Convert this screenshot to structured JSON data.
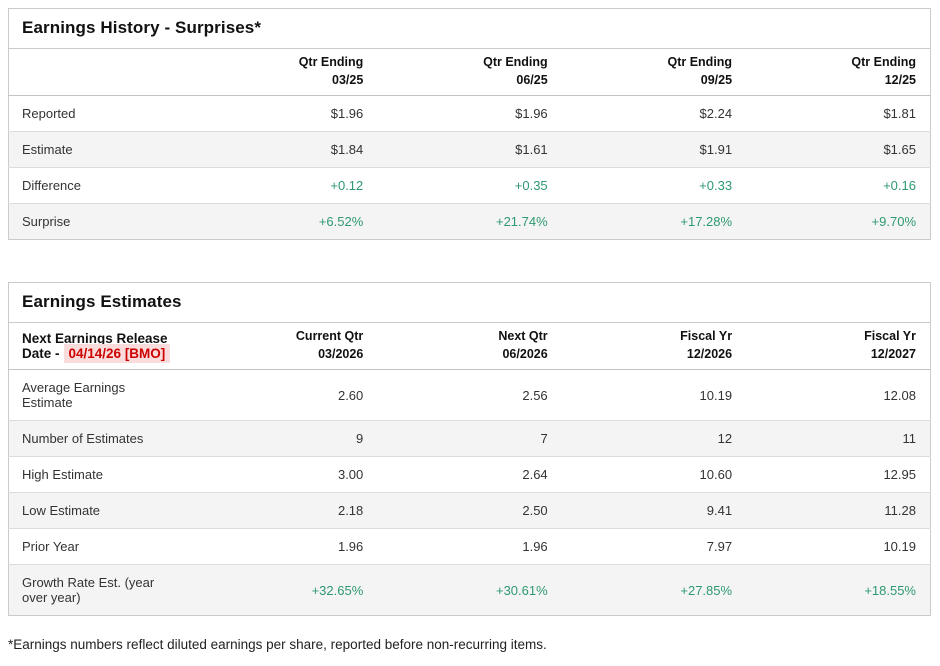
{
  "colors": {
    "positive_value": "#2e9970",
    "release_date_text": "#cc0000",
    "release_date_highlight": "#fbdcdc",
    "alt_row_background": "#f4f4f4",
    "table_border": "#cbcbcb"
  },
  "surprises_table": {
    "title": "Earnings History - Surprises*",
    "column_headers": [
      {
        "line1": "Qtr Ending",
        "line2": "03/25"
      },
      {
        "line1": "Qtr Ending",
        "line2": "06/25"
      },
      {
        "line1": "Qtr Ending",
        "line2": "09/25"
      },
      {
        "line1": "Qtr Ending",
        "line2": "12/25"
      }
    ],
    "rows": [
      {
        "label": "Reported",
        "values": [
          "$1.96",
          "$1.96",
          "$2.24",
          "$1.81"
        ],
        "value_style": "normal"
      },
      {
        "label": "Estimate",
        "values": [
          "$1.84",
          "$1.61",
          "$1.91",
          "$1.65"
        ],
        "value_style": "normal"
      },
      {
        "label": "Difference",
        "values": [
          "+0.12",
          "+0.35",
          "+0.33",
          "+0.16"
        ],
        "value_style": "positive"
      },
      {
        "label": "Surprise",
        "values": [
          "+6.52%",
          "+21.74%",
          "+17.28%",
          "+9.70%"
        ],
        "value_style": "positive"
      }
    ]
  },
  "estimates_table": {
    "title": "Earnings Estimates",
    "release_date_label": "Next Earnings Release Date -",
    "release_date_value": "04/14/26 [BMO]",
    "column_headers": [
      {
        "line1": "Current Qtr",
        "line2": "03/2026"
      },
      {
        "line1": "Next Qtr",
        "line2": "06/2026"
      },
      {
        "line1": "Fiscal Yr",
        "line2": "12/2026"
      },
      {
        "line1": "Fiscal Yr",
        "line2": "12/2027"
      }
    ],
    "rows": [
      {
        "label": "Average Earnings Estimate",
        "values": [
          "2.60",
          "2.56",
          "10.19",
          "12.08"
        ],
        "value_style": "normal"
      },
      {
        "label": "Number of Estimates",
        "values": [
          "9",
          "7",
          "12",
          "11"
        ],
        "value_style": "normal"
      },
      {
        "label": "High Estimate",
        "values": [
          "3.00",
          "2.64",
          "10.60",
          "12.95"
        ],
        "value_style": "normal"
      },
      {
        "label": "Low Estimate",
        "values": [
          "2.18",
          "2.50",
          "9.41",
          "11.28"
        ],
        "value_style": "normal"
      },
      {
        "label": "Prior Year",
        "values": [
          "1.96",
          "1.96",
          "7.97",
          "10.19"
        ],
        "value_style": "normal"
      },
      {
        "label": "Growth Rate Est. (year over year)",
        "values": [
          "+32.65%",
          "+30.61%",
          "+27.85%",
          "+18.55%"
        ],
        "value_style": "positive"
      }
    ]
  },
  "footnote": "*Earnings numbers reflect diluted earnings per share, reported before non-recurring items."
}
